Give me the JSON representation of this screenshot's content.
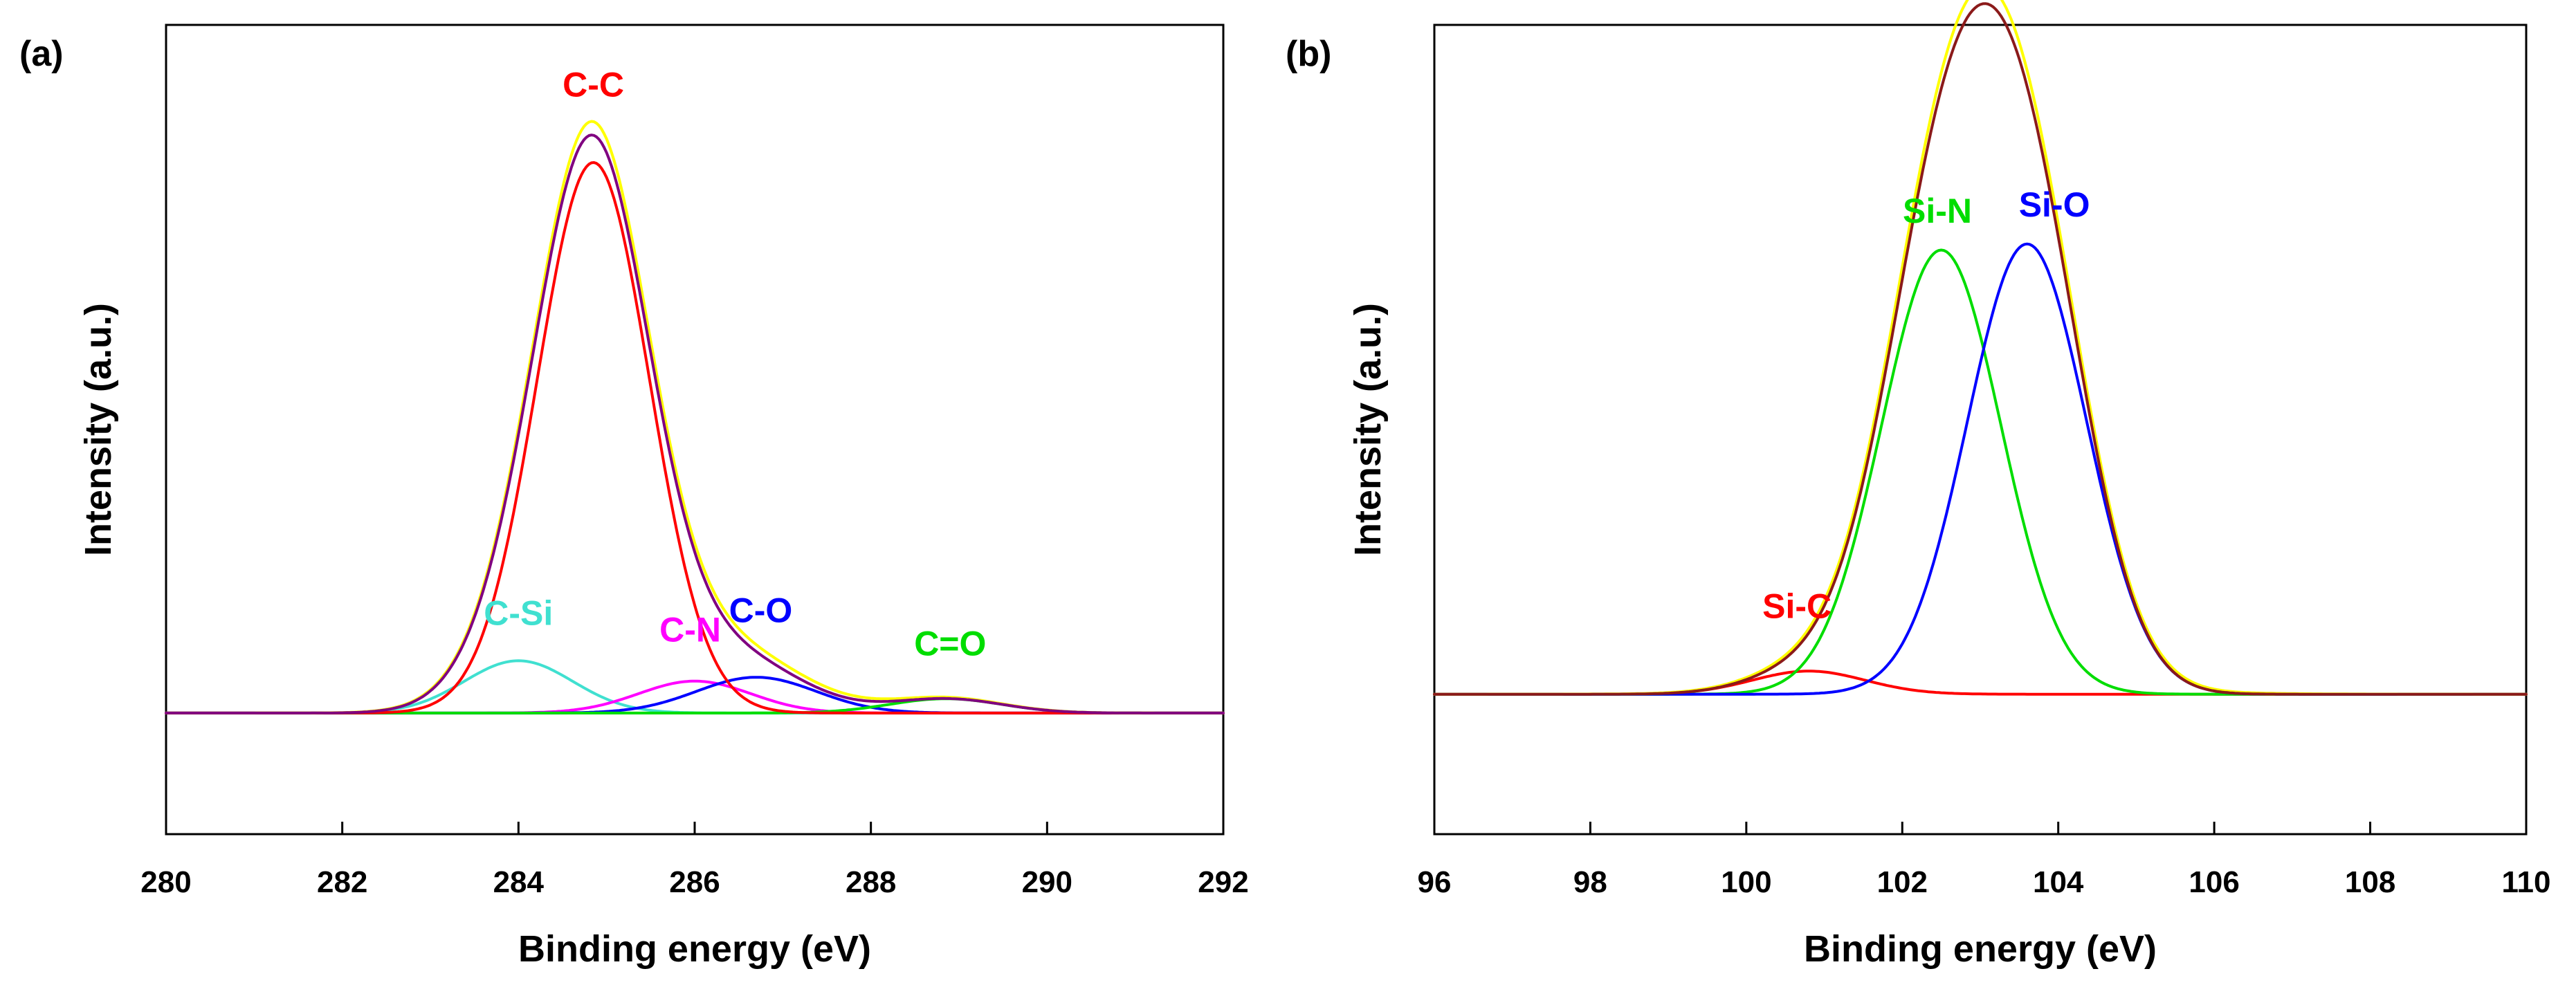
{
  "chart_data": [
    {
      "type": "line",
      "panel_label": "(a)",
      "xlabel": "Binding energy (eV)",
      "ylabel": "Intensity (a.u.)",
      "xlim": [
        280,
        292
      ],
      "ylim": [
        -0.22,
        1.25
      ],
      "xticks": [
        280,
        282,
        284,
        286,
        288,
        290,
        292
      ],
      "background_level": 0,
      "series": [
        {
          "name": "C-C",
          "label": "C-C",
          "color": "#ff0000",
          "center": 284.85,
          "height": 1.0,
          "fwhm": 1.5,
          "label_at": [
            284.85,
            1.12
          ],
          "zorder": 5
        },
        {
          "name": "C-Si",
          "label": "C-Si",
          "color": "#40e0d0",
          "center": 284.0,
          "height": 0.095,
          "fwhm": 1.45,
          "label_at": [
            284.0,
            0.16
          ],
          "zorder": 1
        },
        {
          "name": "C-N",
          "label": "C-N",
          "color": "#ff00ff",
          "center": 286.0,
          "height": 0.058,
          "fwhm": 1.5,
          "label_at": [
            285.95,
            0.13
          ],
          "zorder": 2
        },
        {
          "name": "C-O",
          "label": "C-O",
          "color": "#0000ff",
          "center": 286.7,
          "height": 0.065,
          "fwhm": 1.6,
          "label_at": [
            286.75,
            0.165
          ],
          "zorder": 3
        },
        {
          "name": "C=O",
          "label": "C=O",
          "color": "#00dd00",
          "center": 288.85,
          "height": 0.026,
          "fwhm": 1.5,
          "label_at": [
            288.9,
            0.105
          ],
          "zorder": 4
        },
        {
          "name": "raw",
          "label": "",
          "color": "#ffff00",
          "kind": "raw",
          "zorder": 6
        },
        {
          "name": "envelope",
          "label": "",
          "color": "#800080",
          "kind": "sum",
          "zorder": 7
        }
      ]
    },
    {
      "type": "line",
      "panel_label": "(b)",
      "xlabel": "Binding energy (eV)",
      "ylabel": "Intensity (a.u.)",
      "xlim": [
        96,
        110
      ],
      "ylim": [
        -0.23,
        1.1
      ],
      "xticks": [
        96,
        98,
        100,
        102,
        104,
        106,
        108,
        110
      ],
      "background_level": 0,
      "series": [
        {
          "name": "Si-C",
          "label": "Si-C",
          "color": "#ff0000",
          "center": 100.8,
          "height": 0.038,
          "fwhm": 1.7,
          "label_at": [
            100.65,
            0.125
          ],
          "zorder": 1
        },
        {
          "name": "Si-N",
          "label": "Si-N",
          "color": "#00dd00",
          "center": 102.5,
          "height": 0.73,
          "fwhm": 1.8,
          "label_at": [
            102.45,
            0.775
          ],
          "zorder": 2
        },
        {
          "name": "Si-O",
          "label": "Si-O",
          "color": "#0000ff",
          "center": 103.6,
          "height": 0.74,
          "fwhm": 1.8,
          "label_at": [
            103.95,
            0.785
          ],
          "zorder": 3
        },
        {
          "name": "raw",
          "label": "",
          "color": "#ffff00",
          "kind": "raw",
          "zorder": 4
        },
        {
          "name": "envelope",
          "label": "",
          "color": "#8b1a1a",
          "kind": "sum",
          "zorder": 5
        }
      ]
    }
  ]
}
